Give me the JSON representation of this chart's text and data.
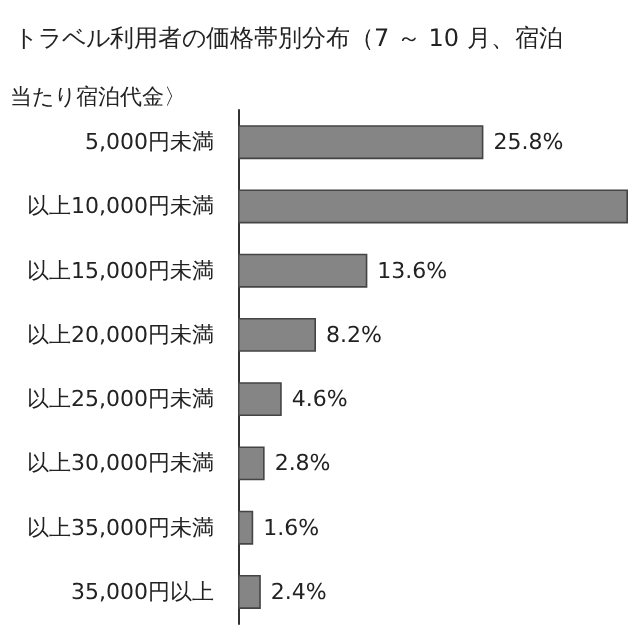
{
  "chart_data": {
    "type": "bar",
    "orientation": "horizontal",
    "title": "トラベル利用者の価格帯別分布（7 ～ 10 月、宿泊",
    "subtitle": "当たり宿泊代金〉",
    "categories": [
      "5,000円未満",
      "以上10,000円未満",
      "以上15,000円未満",
      "以上20,000円未満",
      "以上25,000円未満",
      "以上30,000円未満",
      "以上35,000円未満",
      "35,000円以上"
    ],
    "values": [
      25.8,
      41.0,
      13.6,
      8.2,
      4.6,
      2.8,
      1.6,
      2.4
    ],
    "value_labels": [
      "25.8%",
      null,
      "13.6%",
      "8.2%",
      "4.6%",
      "2.8%",
      "1.6%",
      "2.4%"
    ],
    "color": "#858585"
  }
}
